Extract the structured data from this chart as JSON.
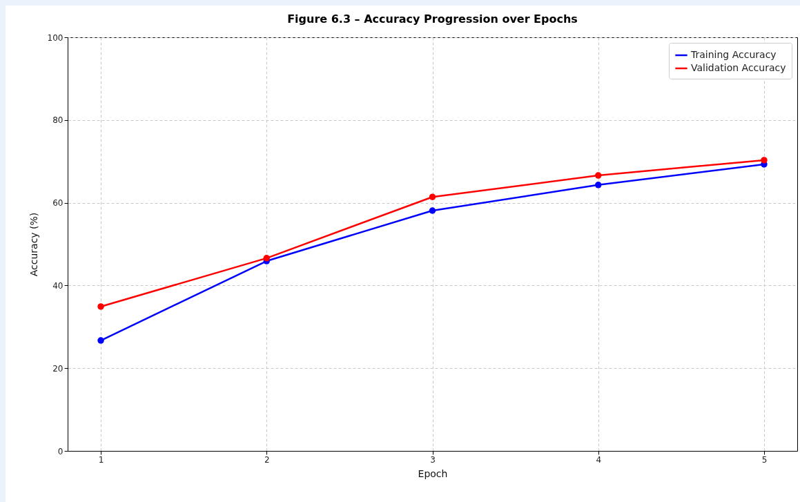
{
  "chart_data": {
    "type": "line",
    "title": "Figure 6.3 – Accuracy Progression over Epochs",
    "xlabel": "Epoch",
    "ylabel": "Accuracy (%)",
    "x": [
      1,
      2,
      3,
      4,
      5
    ],
    "series": [
      {
        "name": "Training Accuracy",
        "color": "#0000ff",
        "values": [
          26.7,
          45.9,
          58.1,
          64.3,
          69.3
        ]
      },
      {
        "name": "Validation Accuracy",
        "color": "#ff0000",
        "values": [
          34.9,
          46.6,
          61.4,
          66.6,
          70.3
        ]
      }
    ],
    "xlim": [
      0.8,
      5.2
    ],
    "xticks": [
      1,
      2,
      3,
      4,
      5
    ],
    "ylim": [
      0,
      100
    ],
    "yticks": [
      0,
      20,
      40,
      60,
      80,
      100
    ],
    "grid": true,
    "legend": "top right",
    "marker": "circle",
    "line_style": "solid"
  }
}
